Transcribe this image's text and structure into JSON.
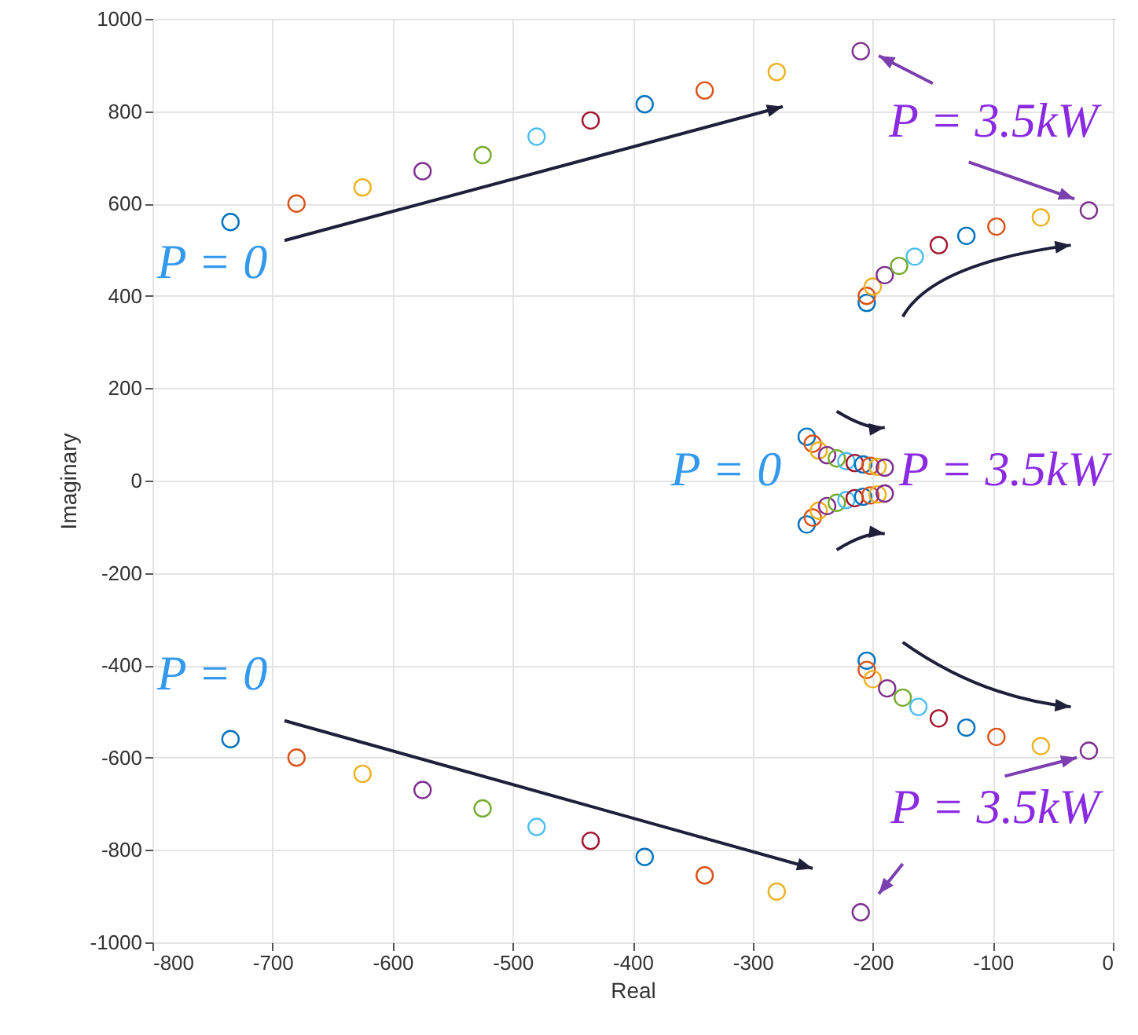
{
  "chart_data": {
    "type": "scatter",
    "xlabel": "Real",
    "ylabel": "Imaginary",
    "xlim": [
      -800,
      0
    ],
    "ylim": [
      -1000,
      1000
    ],
    "xticks": [
      -800,
      -700,
      -600,
      -500,
      -400,
      -300,
      -200,
      -100,
      0
    ],
    "yticks": [
      -1000,
      -800,
      -600,
      -400,
      -200,
      0,
      200,
      400,
      600,
      800,
      1000
    ],
    "grid": true,
    "marker": "circle",
    "annotations": [
      "P = 0",
      "P = 0",
      "P = 0",
      "P = 3.5kW",
      "P = 3.5kW",
      "P = 3.5kW"
    ],
    "series": [
      {
        "color": "#0072bd",
        "x": [
          -735,
          -735,
          -205,
          -205,
          -255,
          -255
        ],
        "values": [
          560,
          -560,
          385,
          -390,
          95,
          -95
        ]
      },
      {
        "color": "#d95319",
        "x": [
          -680,
          -680,
          -205,
          -205,
          -250,
          -250
        ],
        "values": [
          600,
          -600,
          400,
          -410,
          80,
          -80
        ]
      },
      {
        "color": "#edb120",
        "x": [
          -625,
          -625,
          -200,
          -200,
          -245,
          -245
        ],
        "values": [
          635,
          -635,
          420,
          -430,
          65,
          -65
        ]
      },
      {
        "color": "#7e2f8e",
        "x": [
          -575,
          -575,
          -190,
          -188,
          -238,
          -238
        ],
        "values": [
          670,
          -670,
          445,
          -450,
          55,
          -55
        ]
      },
      {
        "color": "#77ac30",
        "x": [
          -525,
          -525,
          -178,
          -175,
          -230,
          -230
        ],
        "values": [
          705,
          -710,
          465,
          -470,
          48,
          -48
        ]
      },
      {
        "color": "#4dbeee",
        "x": [
          -480,
          -480,
          -165,
          -162,
          -222,
          -222
        ],
        "values": [
          745,
          -750,
          485,
          -490,
          42,
          -42
        ]
      },
      {
        "color": "#a2142f",
        "x": [
          -435,
          -435,
          -145,
          -145,
          -215,
          -215
        ],
        "values": [
          780,
          -780,
          510,
          -515,
          38,
          -38
        ]
      },
      {
        "color": "#0072bd",
        "x": [
          -390,
          -390,
          -122,
          -122,
          -208,
          -208
        ],
        "values": [
          815,
          -815,
          530,
          -535,
          35,
          -35
        ]
      },
      {
        "color": "#d95319",
        "x": [
          -340,
          -340,
          -97,
          -97,
          -202,
          -202
        ],
        "values": [
          845,
          -855,
          550,
          -555,
          32,
          -32
        ]
      },
      {
        "color": "#edb120",
        "x": [
          -280,
          -280,
          -60,
          -60,
          -196,
          -196
        ],
        "values": [
          885,
          -890,
          570,
          -575,
          30,
          -30
        ]
      },
      {
        "color": "#7e2f8e",
        "x": [
          -210,
          -210,
          -20,
          -20,
          -190,
          -190
        ],
        "values": [
          930,
          -935,
          585,
          -585,
          28,
          -28
        ]
      }
    ]
  }
}
